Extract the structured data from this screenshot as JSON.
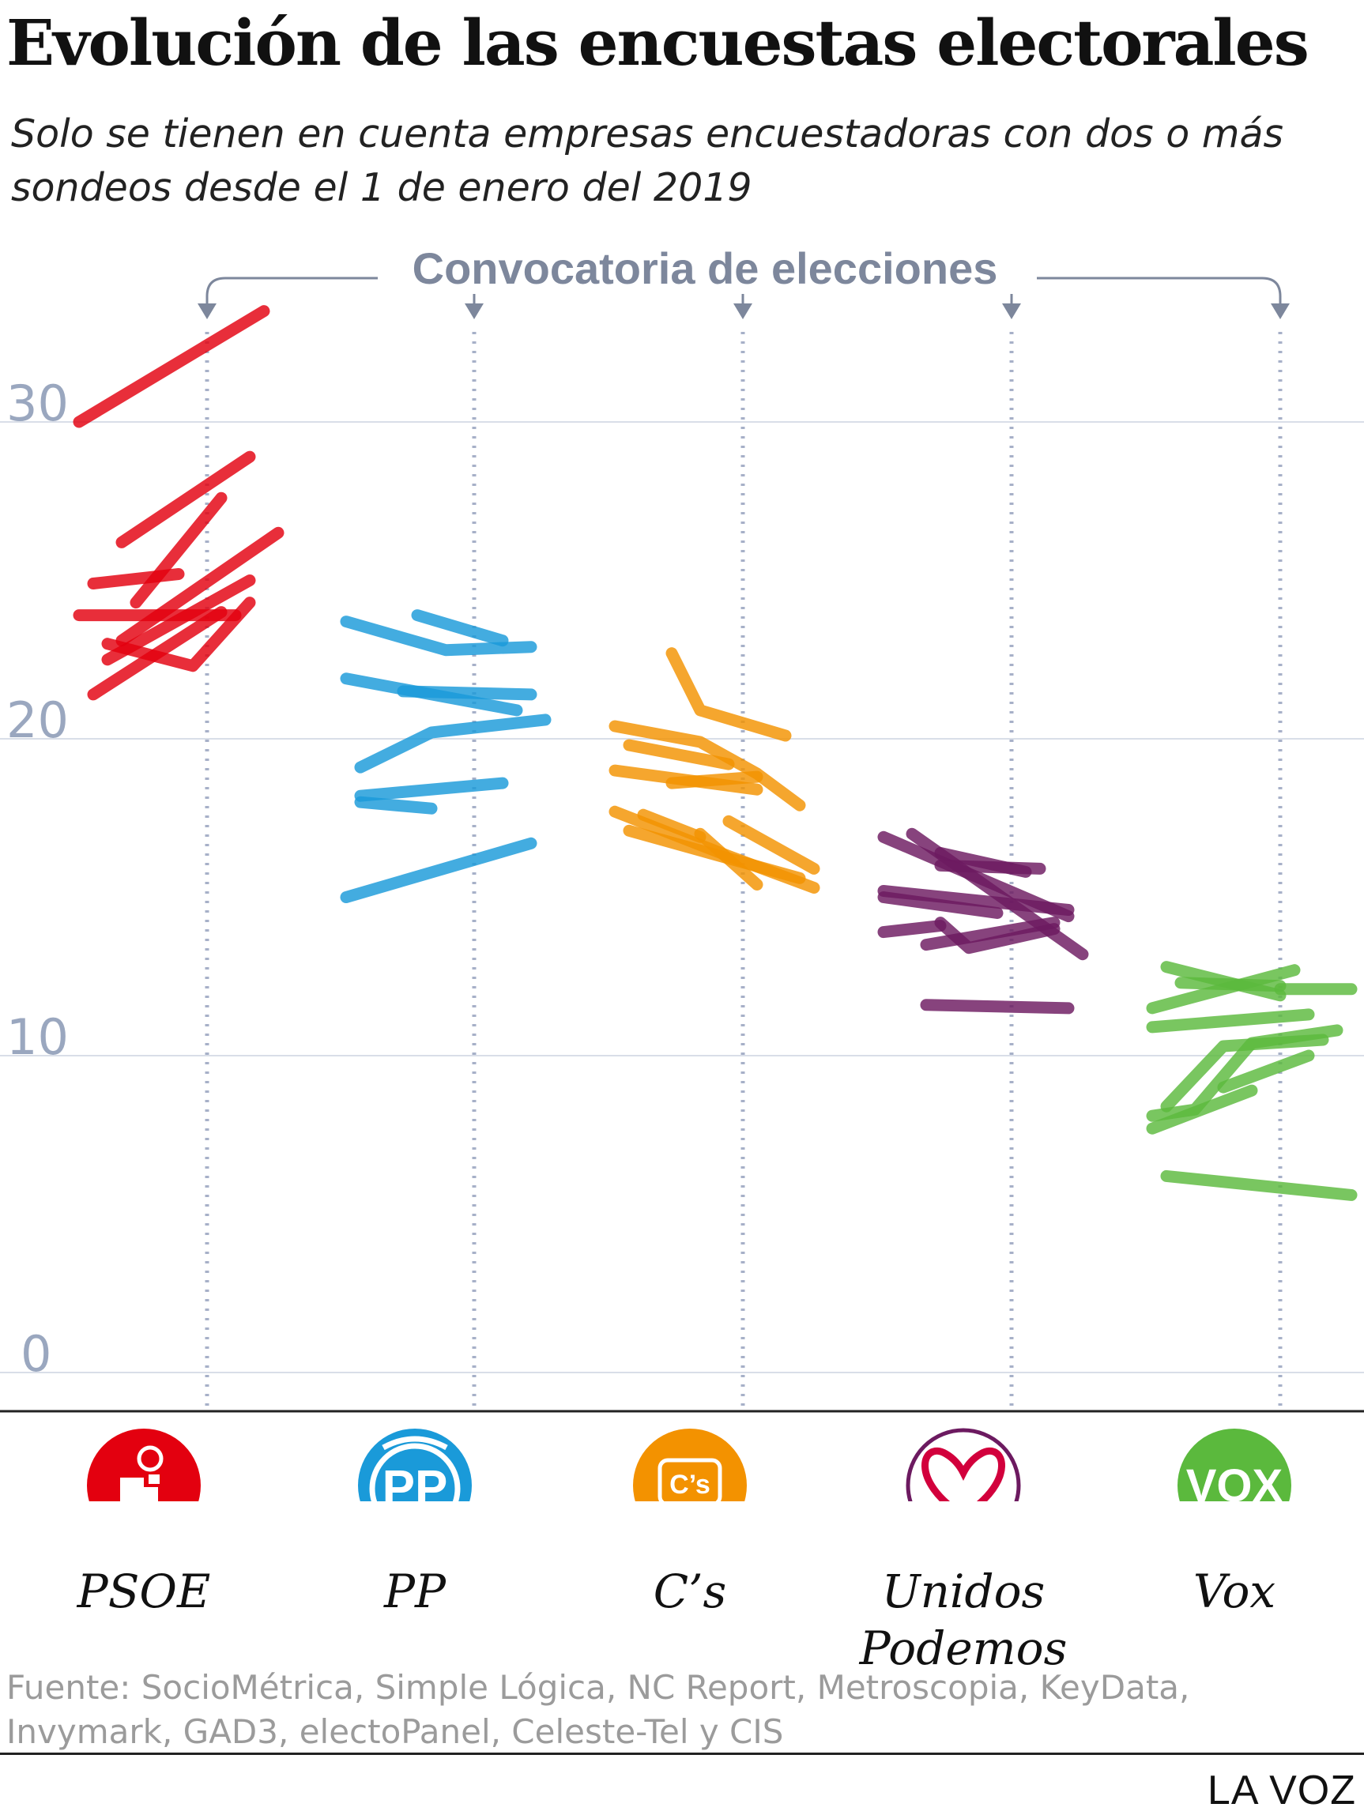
{
  "title": "Evolución de las encuestas electorales",
  "subtitle": "Solo se tienen en cuenta empresas encuestadoras con dos o más sondeos desde el 1 de enero del 2019",
  "annotation": "Convocatoria de elecciones",
  "source": "Fuente: SocioMétrica, Simple Lógica, NC Report, Metroscopia, KeyData, Invymark, GAD3, electoPanel, Celeste-Tel y CIS",
  "brand": "LA VOZ",
  "chart_data": {
    "type": "line",
    "ylim": [
      0,
      33
    ],
    "yticks": [
      0,
      10,
      20,
      30
    ],
    "grid": true,
    "note": "Each party panel shows one line per polling company; x is relative position within the panel (-1 = left edge, 0 = date elections were called, +1 = right edge); y is vote share (%).",
    "series": [
      {
        "party": "PSOE",
        "color": "#e3000f",
        "lines": [
          [
            [
              -0.9,
              30.0
            ],
            [
              0.4,
              33.5
            ]
          ],
          [
            [
              -0.6,
              26.2
            ],
            [
              0.3,
              28.9
            ]
          ],
          [
            [
              -0.8,
              24.9
            ],
            [
              -0.2,
              25.2
            ]
          ],
          [
            [
              -0.5,
              24.3
            ],
            [
              0.1,
              27.6
            ]
          ],
          [
            [
              -0.9,
              23.9
            ],
            [
              0.2,
              23.9
            ]
          ],
          [
            [
              -0.6,
              23.1
            ],
            [
              0.5,
              26.5
            ]
          ],
          [
            [
              -0.7,
              22.5
            ],
            [
              0.3,
              25.0
            ]
          ],
          [
            [
              -0.8,
              21.4
            ],
            [
              0.1,
              24.0
            ]
          ],
          [
            [
              -0.7,
              23.0
            ],
            [
              -0.1,
              22.3
            ],
            [
              0.3,
              24.3
            ]
          ]
        ]
      },
      {
        "party": "PP",
        "color": "#1a9ad9",
        "lines": [
          [
            [
              -0.9,
              23.7
            ],
            [
              -0.2,
              22.8
            ],
            [
              0.4,
              22.9
            ]
          ],
          [
            [
              -0.4,
              23.9
            ],
            [
              0.2,
              23.1
            ]
          ],
          [
            [
              -0.9,
              21.9
            ],
            [
              0.3,
              20.9
            ]
          ],
          [
            [
              -0.5,
              21.5
            ],
            [
              0.4,
              21.4
            ]
          ],
          [
            [
              -0.8,
              19.1
            ],
            [
              -0.3,
              20.2
            ],
            [
              0.5,
              20.6
            ]
          ],
          [
            [
              -0.8,
              18.0
            ],
            [
              -0.3,
              17.8
            ]
          ],
          [
            [
              -0.8,
              18.2
            ],
            [
              0.2,
              18.6
            ]
          ],
          [
            [
              -0.9,
              15.0
            ],
            [
              0.4,
              16.7
            ]
          ]
        ]
      },
      {
        "party": "C's",
        "color": "#f39200",
        "lines": [
          [
            [
              -0.5,
              22.7
            ],
            [
              -0.3,
              20.9
            ],
            [
              0.3,
              20.1
            ]
          ],
          [
            [
              -0.9,
              20.4
            ],
            [
              -0.3,
              19.9
            ],
            [
              0.1,
              18.9
            ],
            [
              0.4,
              17.9
            ]
          ],
          [
            [
              -0.8,
              19.8
            ],
            [
              -0.1,
              19.2
            ]
          ],
          [
            [
              -0.9,
              19.0
            ],
            [
              0.1,
              18.4
            ]
          ],
          [
            [
              -0.5,
              18.6
            ],
            [
              0.1,
              18.8
            ]
          ],
          [
            [
              -0.9,
              17.7
            ],
            [
              -0.1,
              16.3
            ],
            [
              0.5,
              15.3
            ]
          ],
          [
            [
              -0.7,
              17.6
            ],
            [
              -0.3,
              16.9
            ]
          ],
          [
            [
              -0.3,
              17.0
            ],
            [
              0.1,
              15.4
            ]
          ],
          [
            [
              -0.8,
              17.1
            ],
            [
              0.4,
              15.6
            ]
          ],
          [
            [
              -0.1,
              17.4
            ],
            [
              0.5,
              15.9
            ]
          ]
        ]
      },
      {
        "party": "Unidos Podemos",
        "color": "#6c1a60",
        "lines": [
          [
            [
              -0.9,
              16.9
            ],
            [
              0.4,
              14.4
            ]
          ],
          [
            [
              -0.7,
              17.0
            ],
            [
              0.5,
              13.2
            ]
          ],
          [
            [
              -0.5,
              16.4
            ],
            [
              0.1,
              15.8
            ]
          ],
          [
            [
              -0.5,
              16.0
            ],
            [
              0.2,
              15.9
            ]
          ],
          [
            [
              -0.9,
              15.2
            ],
            [
              0.4,
              14.6
            ]
          ],
          [
            [
              -0.9,
              15.0
            ],
            [
              -0.1,
              14.5
            ]
          ],
          [
            [
              -0.9,
              13.9
            ],
            [
              -0.5,
              14.1
            ]
          ],
          [
            [
              -0.5,
              14.2
            ],
            [
              -0.3,
              13.4
            ],
            [
              0.3,
              14.0
            ]
          ],
          [
            [
              -0.6,
              13.5
            ],
            [
              0.3,
              14.2
            ]
          ],
          [
            [
              -0.6,
              11.6
            ],
            [
              0.4,
              11.5
            ]
          ]
        ]
      },
      {
        "party": "Vox",
        "color": "#5bb93d",
        "lines": [
          [
            [
              -0.8,
              12.8
            ],
            [
              0.0,
              11.9
            ]
          ],
          [
            [
              -0.7,
              12.3
            ],
            [
              0.0,
              12.2
            ]
          ],
          [
            [
              -0.9,
              11.5
            ],
            [
              0.1,
              12.7
            ]
          ],
          [
            [
              0.0,
              12.1
            ],
            [
              0.5,
              12.1
            ]
          ],
          [
            [
              -0.9,
              10.9
            ],
            [
              0.2,
              11.3
            ]
          ],
          [
            [
              -0.9,
              8.1
            ],
            [
              -0.6,
              8.3
            ],
            [
              -0.2,
              10.4
            ],
            [
              0.4,
              10.8
            ]
          ],
          [
            [
              -0.8,
              8.4
            ],
            [
              -0.4,
              10.3
            ],
            [
              0.3,
              10.5
            ]
          ],
          [
            [
              -0.9,
              7.7
            ],
            [
              -0.2,
              8.9
            ]
          ],
          [
            [
              -0.4,
              9.0
            ],
            [
              0.2,
              10.0
            ]
          ],
          [
            [
              -0.8,
              6.2
            ],
            [
              0.5,
              5.6
            ]
          ]
        ]
      }
    ]
  },
  "parties": [
    {
      "name": "PSOE",
      "logo_text": "",
      "color": "#e3000f"
    },
    {
      "name": "PP",
      "logo_text": "PP",
      "color": "#1a9ad9"
    },
    {
      "name": "C’s",
      "logo_text": "C’s",
      "color": "#f39200"
    },
    {
      "name": "Unidos Podemos",
      "logo_text": "",
      "color": "#6c1a60"
    },
    {
      "name": "Vox",
      "logo_text": "VOX",
      "color": "#5bb93d"
    }
  ]
}
